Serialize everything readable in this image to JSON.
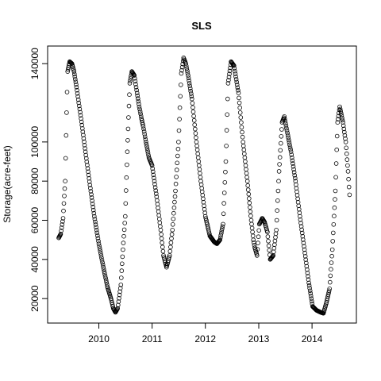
{
  "chart_data": {
    "type": "scatter",
    "title": "SLS",
    "xlabel": "",
    "ylabel": "Storage(acre-feet)",
    "xlim": [
      "2009-01-15",
      "2014-11-01"
    ],
    "ylim": [
      7500,
      149000
    ],
    "x_ticks": [
      "2010-01-01",
      "2011-01-01",
      "2012-01-01",
      "2013-01-01",
      "2014-01-01"
    ],
    "x_tick_labels": [
      "2010",
      "2011",
      "2012",
      "2013",
      "2014"
    ],
    "y_ticks": [
      20000,
      40000,
      60000,
      80000,
      100000,
      140000
    ],
    "y_tick_labels": [
      "20000",
      "40000",
      "60000",
      "80000",
      "100000",
      "140000"
    ],
    "marker": "open-circle",
    "grid": false,
    "series": [
      {
        "x": [
          "2009-04-01",
          "2009-04-15",
          "2009-05-01",
          "2009-05-15",
          "2009-05-25",
          "2009-06-01",
          "2009-06-15",
          "2009-07-01",
          "2009-07-15",
          "2009-08-01",
          "2009-09-01",
          "2009-10-01",
          "2009-11-01",
          "2009-12-01",
          "2010-01-01",
          "2010-02-01",
          "2010-03-01",
          "2010-03-25",
          "2010-04-10",
          "2010-04-25",
          "2010-05-10",
          "2010-06-01",
          "2010-06-15",
          "2010-07-01",
          "2010-07-15",
          "2010-08-01",
          "2010-08-15",
          "2010-09-01",
          "2010-09-20",
          "2010-10-05",
          "2010-10-20",
          "2010-11-01",
          "2010-11-20",
          "2010-12-10",
          "2011-01-01",
          "2011-02-01",
          "2011-03-01",
          "2011-03-20",
          "2011-04-10",
          "2011-05-01",
          "2011-05-20",
          "2011-06-10",
          "2011-07-01",
          "2011-07-20",
          "2011-08-05",
          "2011-08-20",
          "2011-09-05",
          "2011-10-01",
          "2011-11-01",
          "2011-12-01",
          "2012-01-01",
          "2012-02-01",
          "2012-03-01",
          "2012-03-20",
          "2012-04-10",
          "2012-05-01",
          "2012-05-20",
          "2012-06-05",
          "2012-06-25",
          "2012-07-15",
          "2012-08-15",
          "2012-09-15",
          "2012-10-15",
          "2012-11-10",
          "2012-11-25",
          "2012-12-05",
          "2012-12-20",
          "2013-01-05",
          "2013-01-25",
          "2013-02-10",
          "2013-03-01",
          "2013-03-20",
          "2013-04-10",
          "2013-05-01",
          "2013-05-20",
          "2013-06-10",
          "2013-06-25",
          "2013-07-10",
          "2013-08-10",
          "2013-09-10",
          "2013-10-10",
          "2013-11-10",
          "2013-12-10",
          "2014-01-05",
          "2014-02-01",
          "2014-03-01",
          "2014-03-20",
          "2014-04-10",
          "2014-05-01",
          "2014-05-20",
          "2014-06-10",
          "2014-06-25",
          "2014-07-10",
          "2014-08-01",
          "2014-08-20",
          "2014-09-05",
          "2014-09-15"
        ],
        "y": [
          51000,
          53000,
          61000,
          80000,
          115000,
          136000,
          141000,
          140000,
          136000,
          128000,
          112000,
          95000,
          78000,
          62000,
          48000,
          36000,
          26000,
          20000,
          15000,
          13000,
          15000,
          27000,
          45000,
          62000,
          95000,
          130000,
          136000,
          134000,
          125000,
          118000,
          112000,
          108000,
          100000,
          92000,
          88000,
          72000,
          55000,
          42000,
          36000,
          42000,
          55000,
          75000,
          100000,
          135000,
          143000,
          140000,
          134000,
          122000,
          100000,
          80000,
          62000,
          52000,
          49000,
          48000,
          50000,
          58000,
          90000,
          130000,
          141000,
          139000,
          125000,
          100000,
          80000,
          60000,
          50000,
          46000,
          42000,
          58000,
          61000,
          59000,
          54000,
          40000,
          42000,
          55000,
          85000,
          110000,
          113000,
          107000,
          95000,
          80000,
          62000,
          45000,
          28000,
          16000,
          14000,
          13000,
          12500,
          18000,
          25000,
          45000,
          75000,
          110000,
          118000,
          110000,
          100000,
          85000,
          73000
        ]
      }
    ]
  }
}
